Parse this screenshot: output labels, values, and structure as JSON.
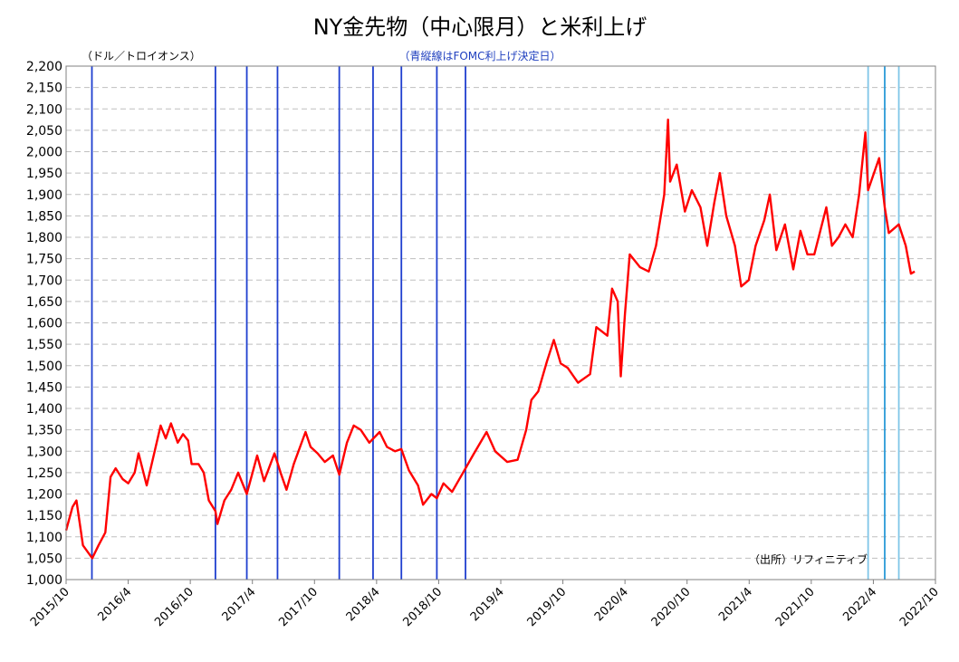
{
  "chart_data": {
    "type": "line",
    "title": "NY金先物（中心限月）と米利上げ",
    "subtitle": "（青縦線はFOMC利上げ決定日）",
    "unit_label": "（ドル／トロイオンス）",
    "source": "（出所）リフィニティブ",
    "xlabel": "",
    "ylabel": "",
    "ylim": [
      1000,
      2200
    ],
    "ytick_step": 50,
    "yticks": [
      "1,000",
      "1,050",
      "1,100",
      "1,150",
      "1,200",
      "1,250",
      "1,300",
      "1,350",
      "1,400",
      "1,450",
      "1,500",
      "1,550",
      "1,600",
      "1,650",
      "1,700",
      "1,750",
      "1,800",
      "1,850",
      "1,900",
      "1,950",
      "2,000",
      "2,050",
      "2,100",
      "2,150",
      "2,200"
    ],
    "xlim": [
      "2015-10",
      "2022-10"
    ],
    "xticks": [
      "2015/10",
      "2016/4",
      "2016/10",
      "2017/4",
      "2017/10",
      "2018/4",
      "2018/10",
      "2019/4",
      "2019/10",
      "2020/4",
      "2020/10",
      "2021/4",
      "2021/10",
      "2022/4",
      "2022/10"
    ],
    "grid": true,
    "series": [
      {
        "name": "",
        "color": "#ff0000",
        "points": [
          [
            "2015-10-01",
            1115
          ],
          [
            "2015-10-20",
            1170
          ],
          [
            "2015-11-01",
            1185
          ],
          [
            "2015-11-20",
            1080
          ],
          [
            "2015-12-17",
            1050
          ],
          [
            "2016-01-05",
            1080
          ],
          [
            "2016-01-25",
            1110
          ],
          [
            "2016-02-10",
            1240
          ],
          [
            "2016-02-25",
            1260
          ],
          [
            "2016-03-15",
            1235
          ],
          [
            "2016-04-01",
            1225
          ],
          [
            "2016-04-20",
            1250
          ],
          [
            "2016-05-01",
            1295
          ],
          [
            "2016-05-25",
            1220
          ],
          [
            "2016-06-15",
            1290
          ],
          [
            "2016-07-05",
            1360
          ],
          [
            "2016-07-20",
            1330
          ],
          [
            "2016-08-05",
            1365
          ],
          [
            "2016-08-25",
            1320
          ],
          [
            "2016-09-10",
            1340
          ],
          [
            "2016-09-25",
            1325
          ],
          [
            "2016-10-05",
            1270
          ],
          [
            "2016-10-25",
            1270
          ],
          [
            "2016-11-10",
            1250
          ],
          [
            "2016-11-25",
            1185
          ],
          [
            "2016-12-14",
            1160
          ],
          [
            "2016-12-20",
            1130
          ],
          [
            "2017-01-10",
            1185
          ],
          [
            "2017-01-30",
            1210
          ],
          [
            "2017-02-20",
            1250
          ],
          [
            "2017-03-15",
            1200
          ],
          [
            "2017-04-15",
            1290
          ],
          [
            "2017-05-05",
            1230
          ],
          [
            "2017-06-05",
            1295
          ],
          [
            "2017-06-25",
            1245
          ],
          [
            "2017-07-10",
            1210
          ],
          [
            "2017-08-01",
            1270
          ],
          [
            "2017-09-05",
            1345
          ],
          [
            "2017-09-20",
            1310
          ],
          [
            "2017-10-10",
            1295
          ],
          [
            "2017-11-01",
            1275
          ],
          [
            "2017-11-25",
            1290
          ],
          [
            "2017-12-13",
            1245
          ],
          [
            "2018-01-05",
            1320
          ],
          [
            "2018-01-25",
            1360
          ],
          [
            "2018-02-15",
            1350
          ],
          [
            "2018-03-10",
            1320
          ],
          [
            "2018-04-10",
            1345
          ],
          [
            "2018-05-01",
            1310
          ],
          [
            "2018-05-25",
            1300
          ],
          [
            "2018-06-13",
            1305
          ],
          [
            "2018-07-05",
            1255
          ],
          [
            "2018-08-01",
            1220
          ],
          [
            "2018-08-16",
            1175
          ],
          [
            "2018-09-10",
            1200
          ],
          [
            "2018-09-26",
            1190
          ],
          [
            "2018-10-15",
            1225
          ],
          [
            "2018-11-10",
            1205
          ],
          [
            "2018-12-19",
            1260
          ],
          [
            "2019-01-10",
            1290
          ],
          [
            "2019-02-20",
            1345
          ],
          [
            "2019-03-15",
            1300
          ],
          [
            "2019-04-20",
            1275
          ],
          [
            "2019-05-20",
            1280
          ],
          [
            "2019-06-15",
            1350
          ],
          [
            "2019-06-30",
            1420
          ],
          [
            "2019-07-20",
            1440
          ],
          [
            "2019-08-15",
            1510
          ],
          [
            "2019-09-05",
            1560
          ],
          [
            "2019-09-25",
            1505
          ],
          [
            "2019-10-15",
            1495
          ],
          [
            "2019-11-15",
            1460
          ],
          [
            "2019-12-20",
            1480
          ],
          [
            "2020-01-08",
            1590
          ],
          [
            "2020-02-10",
            1570
          ],
          [
            "2020-02-24",
            1680
          ],
          [
            "2020-03-10",
            1650
          ],
          [
            "2020-03-19",
            1475
          ],
          [
            "2020-04-01",
            1620
          ],
          [
            "2020-04-15",
            1760
          ],
          [
            "2020-05-15",
            1730
          ],
          [
            "2020-06-10",
            1720
          ],
          [
            "2020-07-01",
            1780
          ],
          [
            "2020-07-25",
            1900
          ],
          [
            "2020-08-06",
            2075
          ],
          [
            "2020-08-12",
            1930
          ],
          [
            "2020-09-01",
            1970
          ],
          [
            "2020-09-25",
            1860
          ],
          [
            "2020-10-15",
            1910
          ],
          [
            "2020-11-10",
            1870
          ],
          [
            "2020-11-30",
            1780
          ],
          [
            "2020-12-20",
            1880
          ],
          [
            "2021-01-06",
            1950
          ],
          [
            "2021-01-25",
            1850
          ],
          [
            "2021-02-20",
            1780
          ],
          [
            "2021-03-08",
            1685
          ],
          [
            "2021-03-30",
            1700
          ],
          [
            "2021-04-20",
            1780
          ],
          [
            "2021-05-15",
            1840
          ],
          [
            "2021-06-01",
            1900
          ],
          [
            "2021-06-20",
            1770
          ],
          [
            "2021-07-15",
            1830
          ],
          [
            "2021-08-09",
            1725
          ],
          [
            "2021-08-30",
            1815
          ],
          [
            "2021-09-20",
            1760
          ],
          [
            "2021-10-10",
            1760
          ],
          [
            "2021-11-15",
            1870
          ],
          [
            "2021-12-01",
            1780
          ],
          [
            "2021-12-20",
            1800
          ],
          [
            "2022-01-10",
            1830
          ],
          [
            "2022-02-01",
            1800
          ],
          [
            "2022-02-20",
            1900
          ],
          [
            "2022-03-08",
            2045
          ],
          [
            "2022-03-16",
            1910
          ],
          [
            "2022-04-18",
            1985
          ],
          [
            "2022-05-04",
            1870
          ],
          [
            "2022-05-16",
            1810
          ],
          [
            "2022-06-15",
            1830
          ],
          [
            "2022-07-05",
            1780
          ],
          [
            "2022-07-20",
            1715
          ],
          [
            "2022-08-01",
            1720
          ]
        ]
      }
    ],
    "fomc_hike_dates": [
      {
        "date": "2015-12-16",
        "color": "#1f3fcf"
      },
      {
        "date": "2016-12-14",
        "color": "#1f3fcf"
      },
      {
        "date": "2017-03-15",
        "color": "#1f3fcf"
      },
      {
        "date": "2017-06-14",
        "color": "#1f3fcf"
      },
      {
        "date": "2017-12-13",
        "color": "#1f3fcf"
      },
      {
        "date": "2018-03-21",
        "color": "#1f3fcf"
      },
      {
        "date": "2018-06-13",
        "color": "#1f3fcf"
      },
      {
        "date": "2018-09-26",
        "color": "#1f3fcf"
      },
      {
        "date": "2018-12-19",
        "color": "#1f3fcf"
      },
      {
        "date": "2022-03-16",
        "color": "#7fc6e8"
      },
      {
        "date": "2022-05-04",
        "color": "#2a9ad8"
      },
      {
        "date": "2022-06-15",
        "color": "#7fc6e8"
      }
    ]
  }
}
